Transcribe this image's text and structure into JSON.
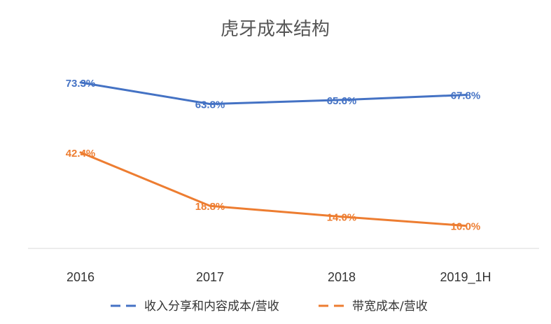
{
  "chart_data": {
    "type": "line",
    "title": "虎牙成本结构",
    "categories": [
      "2016",
      "2017",
      "2018",
      "2019_1H"
    ],
    "series": [
      {
        "name": "收入分享和内容成本/营收",
        "color": "#4472C4",
        "values": [
          73.3,
          63.8,
          65.6,
          67.8
        ],
        "labels": [
          "73.3%",
          "63.8%",
          "65.6%",
          "67.8%"
        ]
      },
      {
        "name": "带宽成本/营收",
        "color": "#ED7D31",
        "values": [
          42.4,
          18.8,
          14.0,
          10.0
        ],
        "labels": [
          "42.4%",
          "18.8%",
          "14.0%",
          "10.0%"
        ]
      }
    ],
    "ylim": [
      0,
      85
    ],
    "grid": false,
    "legend": "bottom"
  }
}
